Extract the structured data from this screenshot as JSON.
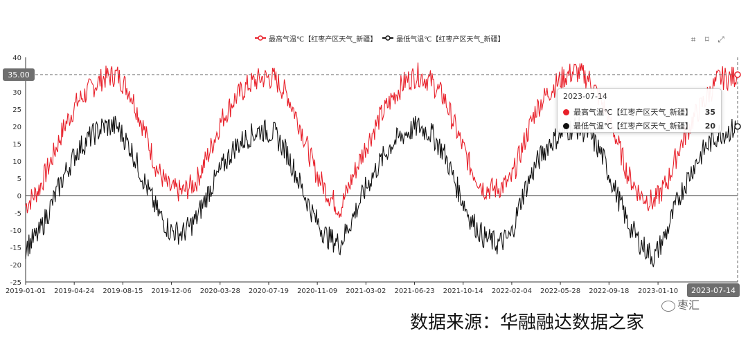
{
  "legend": {
    "high": "最高气温℃【红枣产区天气_新疆】",
    "low": "最低气温℃【红枣产区天气_新疆】"
  },
  "toolbox": {
    "icons": [
      "zoom-icon",
      "zoom-reset-icon",
      "restore-icon"
    ]
  },
  "tooltip": {
    "date": "2023-07-14",
    "rows": [
      {
        "name": "最高气温℃【红枣产区天气_新疆】",
        "value": "35",
        "color": "#e8202a"
      },
      {
        "name": "最低气温℃【红枣产区天气_新疆】",
        "value": "20",
        "color": "#111111"
      }
    ]
  },
  "axis_pointer": {
    "y_label": "35.00",
    "x_label": "2023-07-14"
  },
  "source_text": "数据来源：华融融达数据之家",
  "watermark": "枣汇",
  "chart_data": {
    "type": "line",
    "x_ticks": [
      "2019-01-01",
      "2019-04-24",
      "2019-08-15",
      "2019-12-06",
      "2020-03-28",
      "2020-07-19",
      "2020-11-09",
      "2021-03-02",
      "2021-06-23",
      "2021-10-14",
      "2022-02-04",
      "2022-05-28",
      "2022-09-18",
      "2023-01-10",
      "2023-07-14"
    ],
    "y_ticks": [
      40,
      35,
      30,
      25,
      20,
      15,
      10,
      5,
      0,
      -5,
      -10,
      -15,
      -20,
      -25
    ],
    "ylim": [
      -25,
      40
    ],
    "xlim": [
      "2019-01-01",
      "2023-07-14"
    ],
    "series": [
      {
        "name": "最高气温℃【红枣产区天气_新疆】",
        "color": "#e8202a",
        "points": [
          [
            "2019-01-01",
            -3
          ],
          [
            "2019-02-01",
            2
          ],
          [
            "2019-03-01",
            10
          ],
          [
            "2019-04-01",
            20
          ],
          [
            "2019-05-01",
            27
          ],
          [
            "2019-06-01",
            31
          ],
          [
            "2019-07-01",
            34
          ],
          [
            "2019-08-01",
            35
          ],
          [
            "2019-09-01",
            30
          ],
          [
            "2019-10-01",
            20
          ],
          [
            "2019-11-01",
            8
          ],
          [
            "2019-12-01",
            2
          ],
          [
            "2020-01-01",
            1
          ],
          [
            "2020-02-01",
            4
          ],
          [
            "2020-03-01",
            12
          ],
          [
            "2020-04-01",
            22
          ],
          [
            "2020-05-01",
            28
          ],
          [
            "2020-06-01",
            32
          ],
          [
            "2020-07-01",
            34
          ],
          [
            "2020-08-01",
            34
          ],
          [
            "2020-09-01",
            29
          ],
          [
            "2020-10-01",
            20
          ],
          [
            "2020-11-01",
            8
          ],
          [
            "2020-12-01",
            1
          ],
          [
            "2021-01-01",
            -4
          ],
          [
            "2021-02-01",
            6
          ],
          [
            "2021-03-01",
            14
          ],
          [
            "2021-04-01",
            22
          ],
          [
            "2021-05-01",
            28
          ],
          [
            "2021-06-01",
            33
          ],
          [
            "2021-07-01",
            35
          ],
          [
            "2021-08-01",
            33
          ],
          [
            "2021-09-01",
            28
          ],
          [
            "2021-10-01",
            18
          ],
          [
            "2021-11-01",
            8
          ],
          [
            "2021-12-01",
            2
          ],
          [
            "2022-01-01",
            2
          ],
          [
            "2022-02-01",
            4
          ],
          [
            "2022-03-01",
            14
          ],
          [
            "2022-04-01",
            25
          ],
          [
            "2022-05-01",
            30
          ],
          [
            "2022-06-01",
            34
          ],
          [
            "2022-07-01",
            36
          ],
          [
            "2022-08-01",
            34
          ],
          [
            "2022-09-01",
            27
          ],
          [
            "2022-10-01",
            18
          ],
          [
            "2022-11-01",
            6
          ],
          [
            "2022-12-01",
            0
          ],
          [
            "2023-01-01",
            -2
          ],
          [
            "2023-02-01",
            4
          ],
          [
            "2023-03-01",
            14
          ],
          [
            "2023-04-01",
            22
          ],
          [
            "2023-05-01",
            28
          ],
          [
            "2023-06-01",
            34
          ],
          [
            "2023-07-01",
            34
          ],
          [
            "2023-07-14",
            35
          ]
        ]
      },
      {
        "name": "最低气温℃【红枣产区天气_新疆】",
        "color": "#111111",
        "points": [
          [
            "2019-01-01",
            -15
          ],
          [
            "2019-02-01",
            -11
          ],
          [
            "2019-03-01",
            -3
          ],
          [
            "2019-04-01",
            6
          ],
          [
            "2019-05-01",
            13
          ],
          [
            "2019-06-01",
            17
          ],
          [
            "2019-07-01",
            20
          ],
          [
            "2019-08-01",
            20
          ],
          [
            "2019-09-01",
            14
          ],
          [
            "2019-10-01",
            5
          ],
          [
            "2019-11-01",
            -4
          ],
          [
            "2019-12-01",
            -10
          ],
          [
            "2020-01-01",
            -11
          ],
          [
            "2020-02-01",
            -7
          ],
          [
            "2020-03-01",
            1
          ],
          [
            "2020-04-01",
            8
          ],
          [
            "2020-05-01",
            14
          ],
          [
            "2020-06-01",
            17
          ],
          [
            "2020-07-01",
            19
          ],
          [
            "2020-08-01",
            18
          ],
          [
            "2020-09-01",
            12
          ],
          [
            "2020-10-01",
            3
          ],
          [
            "2020-11-01",
            -6
          ],
          [
            "2020-12-01",
            -12
          ],
          [
            "2021-01-01",
            -14
          ],
          [
            "2021-02-01",
            -6
          ],
          [
            "2021-03-01",
            2
          ],
          [
            "2021-04-01",
            9
          ],
          [
            "2021-05-01",
            15
          ],
          [
            "2021-06-01",
            18
          ],
          [
            "2021-07-01",
            20
          ],
          [
            "2021-08-01",
            18
          ],
          [
            "2021-09-01",
            12
          ],
          [
            "2021-10-01",
            2
          ],
          [
            "2021-11-01",
            -7
          ],
          [
            "2021-12-01",
            -12
          ],
          [
            "2022-01-01",
            -14
          ],
          [
            "2022-02-01",
            -12
          ],
          [
            "2022-03-01",
            0
          ],
          [
            "2022-04-01",
            9
          ],
          [
            "2022-05-01",
            15
          ],
          [
            "2022-06-01",
            18
          ],
          [
            "2022-07-01",
            20
          ],
          [
            "2022-08-01",
            18
          ],
          [
            "2022-09-01",
            12
          ],
          [
            "2022-10-01",
            2
          ],
          [
            "2022-11-01",
            -8
          ],
          [
            "2022-12-01",
            -14
          ],
          [
            "2023-01-01",
            -18
          ],
          [
            "2023-02-01",
            -10
          ],
          [
            "2023-03-01",
            0
          ],
          [
            "2023-04-01",
            8
          ],
          [
            "2023-05-01",
            14
          ],
          [
            "2023-06-01",
            18
          ],
          [
            "2023-07-01",
            19
          ],
          [
            "2023-07-14",
            20
          ]
        ]
      }
    ]
  }
}
